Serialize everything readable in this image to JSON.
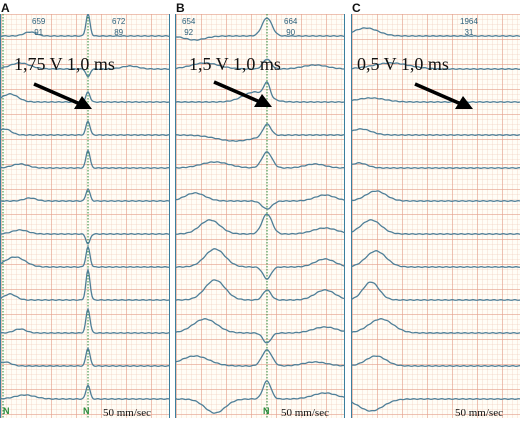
{
  "panels": [
    {
      "letter": "A",
      "rr_left": {
        "top": "659",
        "bottom": "91"
      },
      "rr_right": {
        "top": "672",
        "bottom": "89"
      },
      "stimulus": "1,75 V 1,0 ms",
      "n_marks": [
        "N",
        "N"
      ],
      "speed": "50 mm/sec"
    },
    {
      "letter": "B",
      "rr_left": {
        "top": "654",
        "bottom": "92"
      },
      "rr_right": {
        "top": "664",
        "bottom": "90"
      },
      "stimulus": "1,5 V 1,0 ms",
      "n_marks": [
        "N"
      ],
      "speed": "50 mm/sec"
    },
    {
      "letter": "C",
      "rr_right": {
        "top": "1964",
        "bottom": "31"
      },
      "stimulus": "0,5 V 1,0 ms",
      "speed": "50 mm/sec"
    }
  ],
  "colors": {
    "trace": "#4f7f98",
    "marker": "#2a8a3a",
    "grid": "#e5a08c"
  }
}
